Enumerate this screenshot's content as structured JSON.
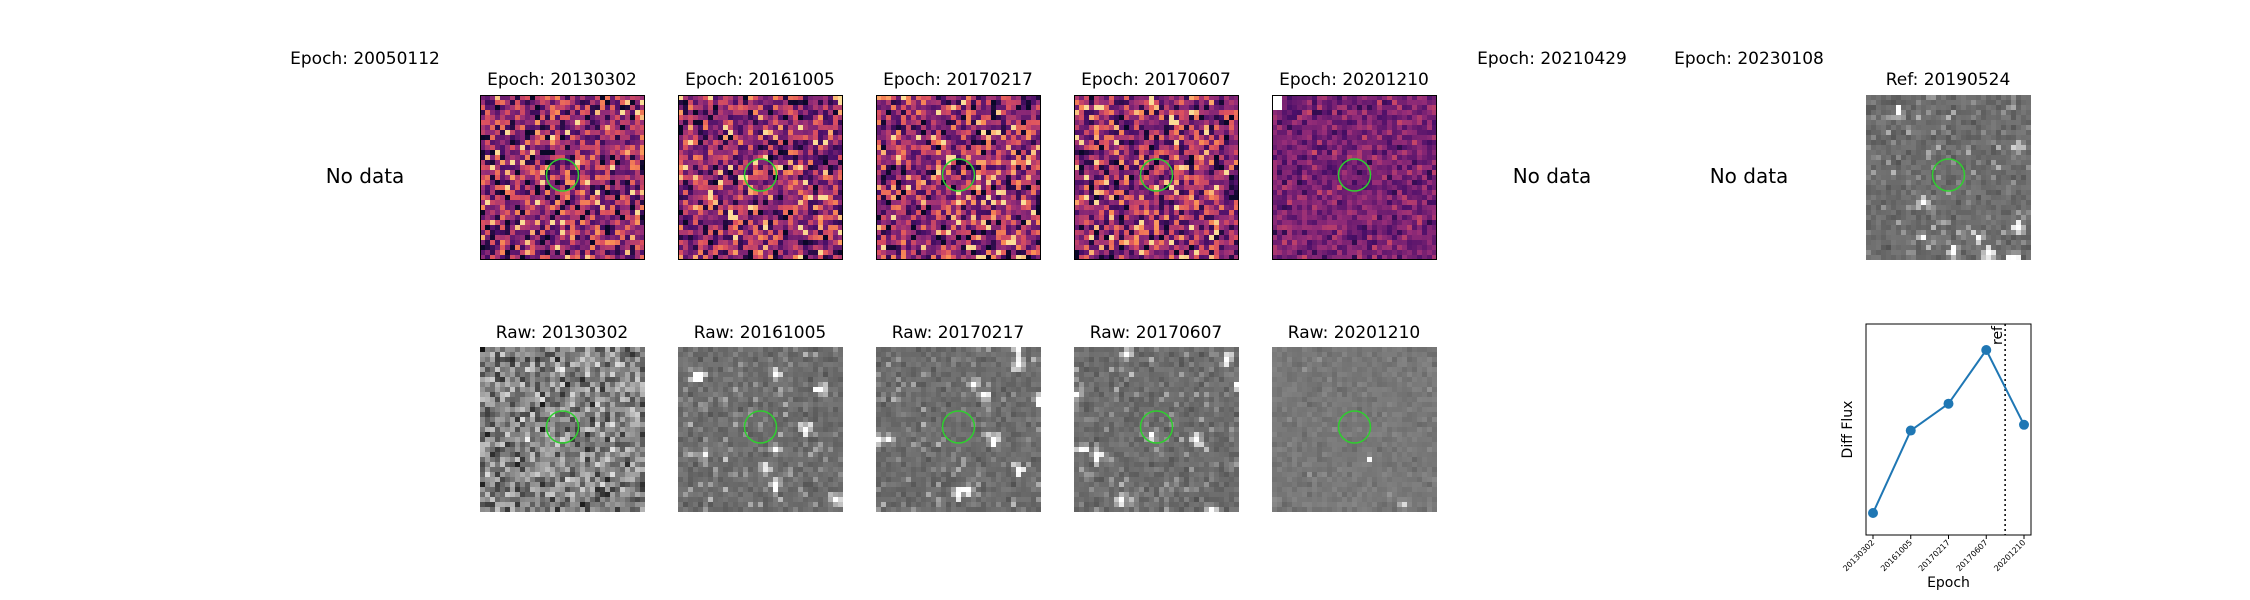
{
  "nodata_label": "No data",
  "top_row": [
    {
      "title": "Epoch: 20050112",
      "has_data": false
    },
    {
      "title": "Epoch: 20130302",
      "has_data": true
    },
    {
      "title": "Epoch: 20161005",
      "has_data": true
    },
    {
      "title": "Epoch: 20170217",
      "has_data": true
    },
    {
      "title": "Epoch: 20170607",
      "has_data": true
    },
    {
      "title": "Epoch: 20201210",
      "has_data": true
    },
    {
      "title": "Epoch: 20210429",
      "has_data": false
    },
    {
      "title": "Epoch: 20230108",
      "has_data": false
    },
    {
      "title": "Ref: 20190524",
      "has_data": true
    }
  ],
  "bottom_row": [
    {
      "title": "Raw: 20130302"
    },
    {
      "title": "Raw: 20161005"
    },
    {
      "title": "Raw: 20170217"
    },
    {
      "title": "Raw: 20170607"
    },
    {
      "title": "Raw: 20201210"
    }
  ],
  "colors": {
    "aperture": "#2fcf2f",
    "line": "#1f77b4",
    "frame": "#000000"
  },
  "chart_data": {
    "type": "line",
    "categories": [
      "20130302",
      "20161005",
      "20170217",
      "20170607",
      "20201210"
    ],
    "series": [
      {
        "values": [
          0.0,
          0.43,
          0.57,
          0.85,
          0.46
        ]
      }
    ],
    "ref_marker": {
      "position_index": 3.5,
      "label": "ref"
    },
    "xlabel": "Epoch",
    "ylabel": "Diff Flux",
    "yticks_shown": false,
    "grid": false
  }
}
